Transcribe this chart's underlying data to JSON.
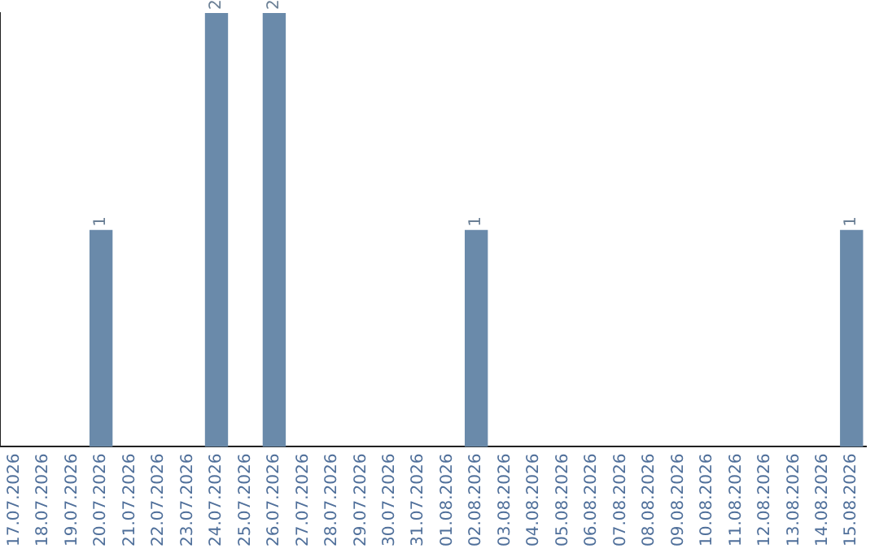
{
  "chart_data": {
    "type": "bar",
    "categories": [
      "17.07.2026",
      "18.07.2026",
      "19.07.2026",
      "20.07.2026",
      "21.07.2026",
      "22.07.2026",
      "23.07.2026",
      "24.07.2026",
      "25.07.2026",
      "26.07.2026",
      "27.07.2026",
      "28.07.2026",
      "29.07.2026",
      "30.07.2026",
      "31.07.2026",
      "01.08.2026",
      "02.08.2026",
      "03.08.2026",
      "04.08.2026",
      "05.08.2026",
      "06.08.2026",
      "07.08.2026",
      "08.08.2026",
      "09.08.2026",
      "10.08.2026",
      "11.08.2026",
      "12.08.2026",
      "13.08.2026",
      "14.08.2026",
      "15.08.2026"
    ],
    "values": [
      0,
      0,
      0,
      1,
      0,
      0,
      0,
      2,
      0,
      2,
      0,
      0,
      0,
      0,
      0,
      0,
      1,
      0,
      0,
      0,
      0,
      0,
      0,
      0,
      0,
      0,
      0,
      0,
      0,
      1
    ],
    "value_labels": [
      null,
      null,
      null,
      "1",
      null,
      null,
      null,
      "2",
      null,
      "2",
      null,
      null,
      null,
      null,
      null,
      null,
      "1",
      null,
      null,
      null,
      null,
      null,
      null,
      null,
      null,
      null,
      null,
      null,
      null,
      "1"
    ],
    "color": "#6a8aaa",
    "tick_labels": "x",
    "grid": false,
    "legend": false
  }
}
